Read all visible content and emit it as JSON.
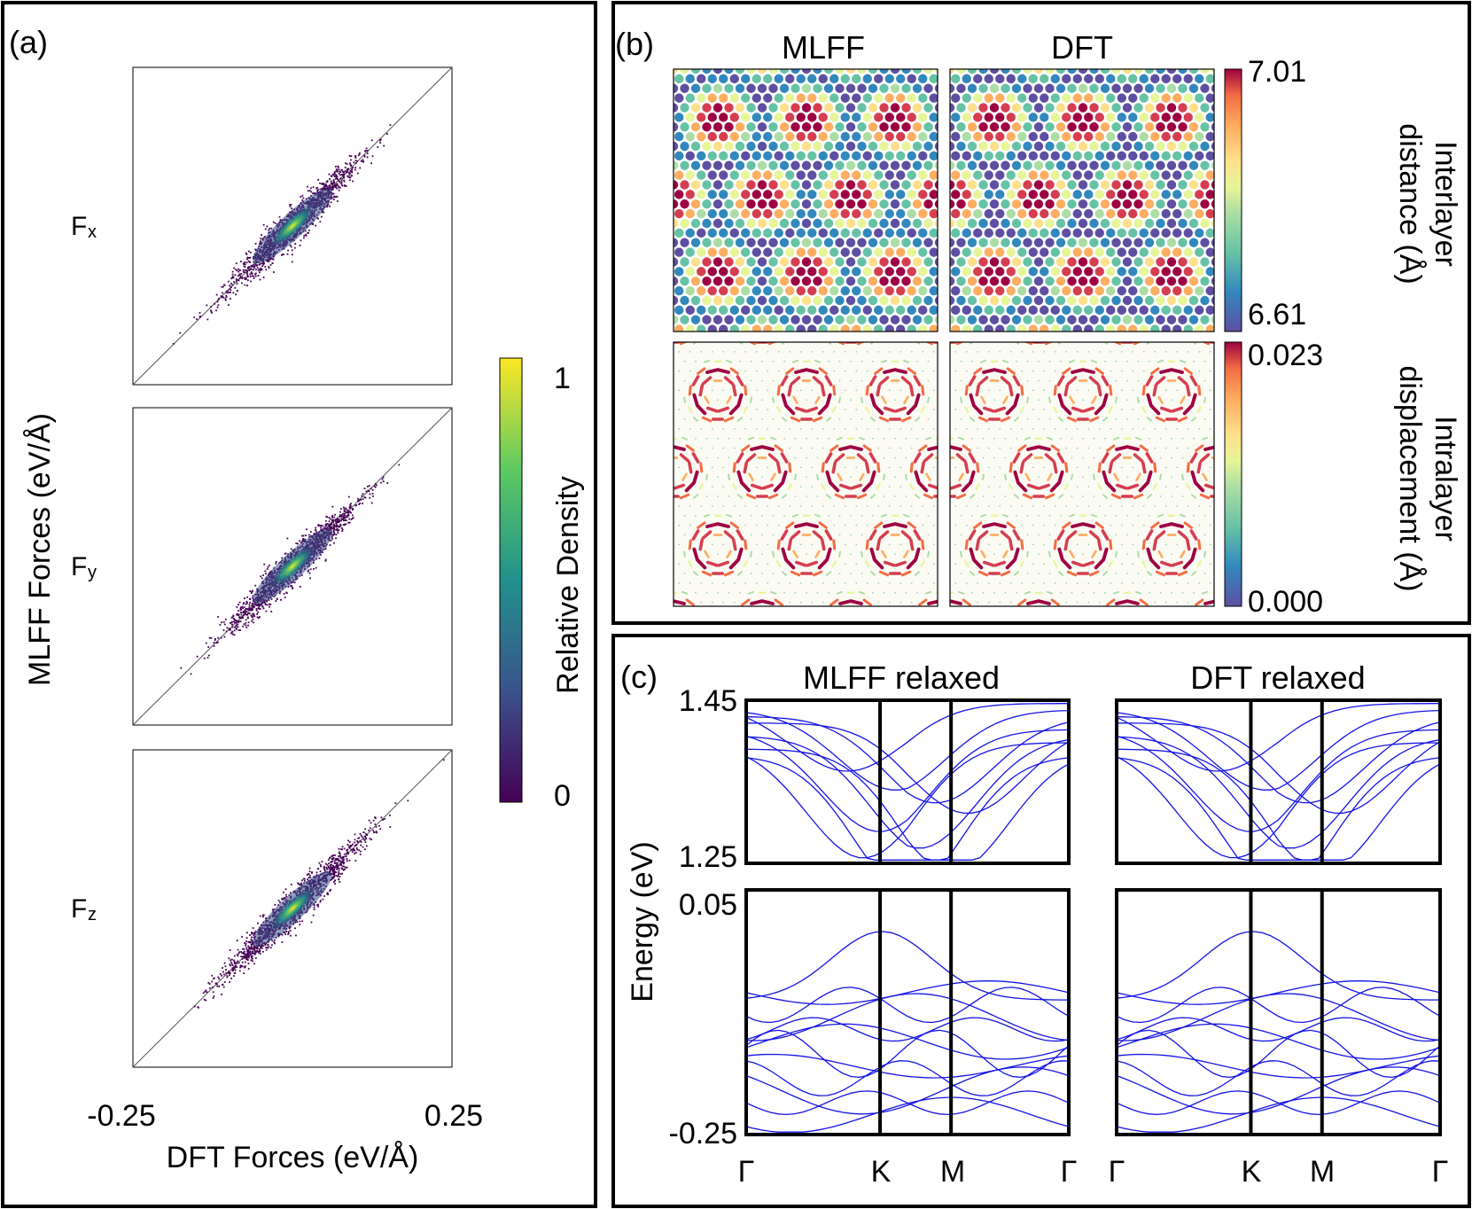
{
  "panel_a": {
    "label": "(a)",
    "y_title": "MLFF Forces (eV/Å)",
    "x_title": "DFT Forces (eV/Å)",
    "x_tick_min": "-0.25",
    "x_tick_max": "0.25",
    "colorbar": {
      "label": "Relative Density",
      "tick_max": "1",
      "tick_min": "0"
    }
  },
  "panel_b": {
    "label": "(b)",
    "col_mlff": "MLFF",
    "col_dft": "DFT",
    "cbar_top": {
      "line1": "Interlayer",
      "line2": "distance (Å)",
      "max": "7.01",
      "min": "6.61"
    },
    "cbar_bottom": {
      "line1": "Intralayer",
      "line2": "displacement (Å)",
      "max": "0.023",
      "min": "0.000"
    }
  },
  "panel_c": {
    "label": "(c)",
    "title_left": "MLFF relaxed",
    "title_right": "DFT relaxed",
    "ylabel": "Energy (eV)",
    "ticks": {
      "top_max": "1.45",
      "top_min": "1.25",
      "bot_max": "0.05",
      "bot_min": "-0.25"
    },
    "kpoints": [
      "Γ",
      "K",
      "M",
      "Γ"
    ]
  },
  "chart_data": [
    {
      "type": "scatter",
      "id": "force-parity",
      "title": "",
      "xlabel": "DFT Forces (eV/Å)",
      "ylabel": "MLFF Forces (eV/Å)",
      "xlim": [
        -0.25,
        0.25
      ],
      "ylim": [
        -0.25,
        0.25
      ],
      "colorbar": {
        "label": "Relative Density",
        "range": [
          0,
          1
        ]
      },
      "subplots": [
        {
          "name": "Fx",
          "label_main": "F",
          "label_sub": "x",
          "x_range": [
            -0.25,
            0.25
          ],
          "center": [
            0,
            0
          ],
          "spread": 0.09
        },
        {
          "name": "Fy",
          "label_main": "F",
          "label_sub": "y",
          "x_range": [
            -0.25,
            0.25
          ],
          "center": [
            0,
            0
          ],
          "spread": 0.09
        },
        {
          "name": "Fz",
          "label_main": "F",
          "label_sub": "z",
          "x_range": [
            -0.25,
            0.25
          ],
          "center": [
            0,
            0
          ],
          "spread": 0.1
        }
      ]
    },
    {
      "type": "heatmap",
      "id": "interlayer-distance",
      "series": [
        {
          "name": "MLFF"
        },
        {
          "name": "DFT"
        }
      ],
      "range": [
        6.61,
        7.01
      ],
      "unit": "Å"
    },
    {
      "type": "heatmap",
      "id": "intralayer-displacement",
      "series": [
        {
          "name": "MLFF"
        },
        {
          "name": "DFT"
        }
      ],
      "range": [
        0.0,
        0.023
      ],
      "unit": "Å"
    },
    {
      "type": "line",
      "id": "band-structure",
      "series": [
        {
          "name": "MLFF relaxed"
        },
        {
          "name": "DFT relaxed"
        }
      ],
      "xlabel": "",
      "ylabel": "Energy (eV)",
      "x_ticks": [
        "Γ",
        "K",
        "M",
        "Γ"
      ],
      "ylim_upper": [
        1.25,
        1.45
      ],
      "ylim_lower": [
        -0.25,
        0.05
      ],
      "line_color": "#1414e6"
    }
  ],
  "colors": {
    "frame": "#000000",
    "band": "#1414e6",
    "background": "#ffffff"
  }
}
